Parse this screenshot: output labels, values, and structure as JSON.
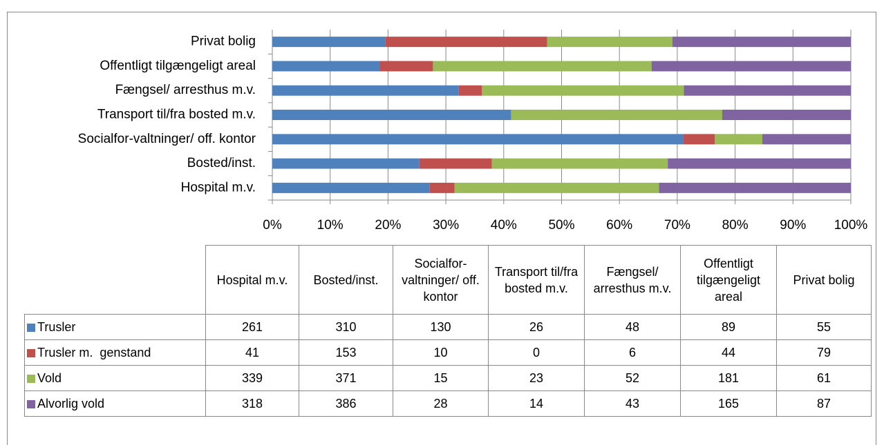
{
  "chart_data": {
    "type": "stacked-bar-100",
    "categories": [
      "Hospital m.v.",
      "Bosted/inst.",
      "Socialfor-valtninger/ off. kontor",
      "Transport til/fra bosted m.v.",
      "Fængsel/ arresthus m.v.",
      "Offentligt tilgængeligt areal",
      "Privat bolig"
    ],
    "series": [
      {
        "name": "Trusler",
        "color": "#4f81bd",
        "values": [
          261,
          310,
          130,
          26,
          48,
          89,
          55
        ]
      },
      {
        "name": "Trusler m.  genstand",
        "color": "#c0504d",
        "values": [
          41,
          153,
          10,
          0,
          6,
          44,
          79
        ]
      },
      {
        "name": "Vold",
        "color": "#9bbb59",
        "values": [
          339,
          371,
          15,
          23,
          52,
          181,
          61
        ]
      },
      {
        "name": "Alvorlig vold",
        "color": "#8064a2",
        "values": [
          318,
          386,
          28,
          14,
          43,
          165,
          87
        ]
      }
    ],
    "xlim": [
      0,
      100
    ],
    "xticks": [
      {
        "value": 0,
        "label": "0%"
      },
      {
        "value": 10,
        "label": "10%"
      },
      {
        "value": 20,
        "label": "20%"
      },
      {
        "value": 30,
        "label": "30%"
      },
      {
        "value": 40,
        "label": "40%"
      },
      {
        "value": 50,
        "label": "50%"
      },
      {
        "value": 60,
        "label": "60%"
      },
      {
        "value": 70,
        "label": "70%"
      },
      {
        "value": 80,
        "label": "80%"
      },
      {
        "value": 90,
        "label": "90%"
      },
      {
        "value": 100,
        "label": "100%"
      }
    ],
    "grid": true
  }
}
